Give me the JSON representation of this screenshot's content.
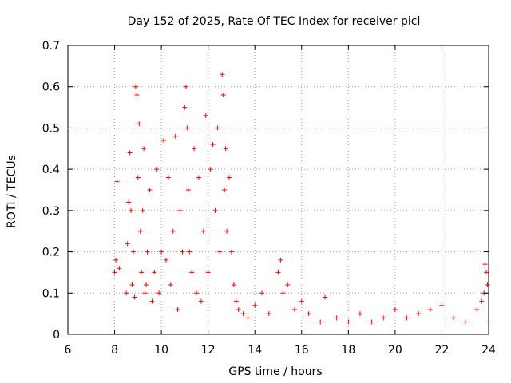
{
  "chart_data": {
    "type": "scatter",
    "title": "Day 152 of 2025, Rate Of TEC Index for receiver picl",
    "xlabel": "GPS time / hours",
    "ylabel": "ROTI / TECUs",
    "xlim": [
      6,
      24
    ],
    "ylim": [
      0,
      0.7
    ],
    "xticks": [
      "6",
      "8",
      "10",
      "12",
      "14",
      "16",
      "18",
      "20",
      "22",
      "24"
    ],
    "yticks": [
      "0",
      "0.1",
      "0.2",
      "0.3",
      "0.4",
      "0.5",
      "0.6",
      "0.7"
    ],
    "grid": true,
    "marker": "plus",
    "color": "#ff0000",
    "series": [
      {
        "name": "ROTI",
        "x": [
          8.0,
          8.05,
          8.1,
          8.2,
          8.5,
          8.55,
          8.6,
          8.65,
          8.7,
          8.75,
          8.8,
          8.85,
          8.9,
          8.95,
          9.0,
          9.05,
          9.1,
          9.15,
          9.2,
          9.25,
          9.3,
          9.35,
          9.4,
          9.5,
          9.6,
          9.7,
          9.8,
          9.9,
          10.0,
          10.1,
          10.2,
          10.3,
          10.4,
          10.5,
          10.6,
          10.7,
          10.8,
          10.9,
          11.0,
          11.05,
          11.1,
          11.15,
          11.2,
          11.3,
          11.4,
          11.5,
          11.6,
          11.7,
          11.8,
          11.9,
          12.0,
          12.1,
          12.2,
          12.3,
          12.4,
          12.5,
          12.6,
          12.65,
          12.7,
          12.75,
          12.8,
          12.9,
          13.0,
          13.1,
          13.2,
          13.3,
          13.5,
          13.7,
          14.0,
          14.3,
          14.6,
          15.0,
          15.1,
          15.2,
          15.4,
          15.7,
          16.0,
          16.3,
          16.8,
          17.0,
          17.5,
          18.0,
          18.5,
          19.0,
          19.5,
          20.0,
          20.5,
          21.0,
          21.5,
          22.0,
          22.5,
          23.0,
          23.5,
          23.7,
          23.8,
          23.85,
          23.9,
          23.95,
          24.0
        ],
        "y": [
          0.15,
          0.18,
          0.37,
          0.16,
          0.1,
          0.22,
          0.32,
          0.44,
          0.3,
          0.12,
          0.2,
          0.09,
          0.6,
          0.58,
          0.38,
          0.51,
          0.25,
          0.15,
          0.3,
          0.45,
          0.1,
          0.12,
          0.2,
          0.35,
          0.08,
          0.15,
          0.4,
          0.1,
          0.2,
          0.47,
          0.18,
          0.38,
          0.12,
          0.25,
          0.48,
          0.06,
          0.3,
          0.2,
          0.55,
          0.6,
          0.5,
          0.35,
          0.2,
          0.15,
          0.45,
          0.1,
          0.38,
          0.08,
          0.25,
          0.53,
          0.15,
          0.4,
          0.46,
          0.3,
          0.5,
          0.2,
          0.63,
          0.58,
          0.35,
          0.45,
          0.25,
          0.38,
          0.2,
          0.12,
          0.08,
          0.06,
          0.05,
          0.04,
          0.07,
          0.1,
          0.05,
          0.15,
          0.18,
          0.1,
          0.12,
          0.06,
          0.08,
          0.05,
          0.03,
          0.09,
          0.04,
          0.03,
          0.05,
          0.03,
          0.04,
          0.06,
          0.04,
          0.05,
          0.06,
          0.07,
          0.04,
          0.03,
          0.06,
          0.08,
          0.1,
          0.17,
          0.15,
          0.12,
          0.03
        ]
      }
    ]
  }
}
